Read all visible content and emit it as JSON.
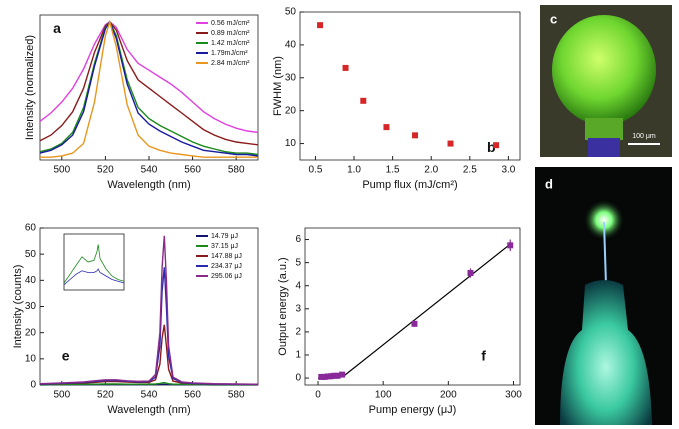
{
  "chart_data": [
    {
      "type": "line",
      "panel_label": "a",
      "xlabel": "Wavelength (nm)",
      "ylabel": "Intensity (normalized)",
      "xlim": [
        490,
        590
      ],
      "xticks": [
        500,
        520,
        540,
        560,
        580
      ],
      "ylim": [
        0,
        1.05
      ],
      "yticks": [],
      "legend": "upper right",
      "x": [
        490,
        495,
        500,
        505,
        510,
        515,
        520,
        522,
        525,
        530,
        535,
        540,
        545,
        550,
        555,
        560,
        565,
        570,
        575,
        580,
        585,
        590
      ],
      "series": [
        {
          "name": "0.56 mJ/cm²",
          "color": "#e040e0",
          "values": [
            0.28,
            0.34,
            0.42,
            0.52,
            0.66,
            0.84,
            0.98,
            1.0,
            0.96,
            0.8,
            0.7,
            0.65,
            0.6,
            0.55,
            0.49,
            0.42,
            0.35,
            0.3,
            0.26,
            0.23,
            0.21,
            0.2
          ]
        },
        {
          "name": "0.89 mJ/cm²",
          "color": "#8b1a1a",
          "values": [
            0.14,
            0.18,
            0.25,
            0.35,
            0.52,
            0.78,
            0.97,
            1.0,
            0.94,
            0.72,
            0.58,
            0.52,
            0.46,
            0.4,
            0.34,
            0.28,
            0.22,
            0.18,
            0.15,
            0.13,
            0.12,
            0.11
          ]
        },
        {
          "name": "1.42 mJ/cm²",
          "color": "#1a8a1a",
          "values": [
            0.06,
            0.08,
            0.12,
            0.2,
            0.38,
            0.7,
            0.96,
            1.0,
            0.9,
            0.58,
            0.38,
            0.3,
            0.25,
            0.21,
            0.17,
            0.13,
            0.1,
            0.08,
            0.06,
            0.05,
            0.05,
            0.04
          ]
        },
        {
          "name": "1.79mJ/cm²",
          "color": "#1a1aa0",
          "values": [
            0.05,
            0.07,
            0.11,
            0.18,
            0.35,
            0.68,
            0.95,
            1.0,
            0.88,
            0.55,
            0.34,
            0.26,
            0.21,
            0.17,
            0.13,
            0.1,
            0.07,
            0.06,
            0.05,
            0.04,
            0.04,
            0.03
          ]
        },
        {
          "name": "2.84 mJ/cm²",
          "color": "#e8961e",
          "values": [
            0.02,
            0.02,
            0.03,
            0.05,
            0.12,
            0.42,
            0.9,
            1.0,
            0.82,
            0.4,
            0.18,
            0.1,
            0.07,
            0.05,
            0.04,
            0.03,
            0.02,
            0.02,
            0.02,
            0.02,
            0.02,
            0.02
          ]
        }
      ]
    },
    {
      "type": "scatter",
      "panel_label": "b",
      "xlabel": "Pump flux (mJ/cm²)",
      "ylabel": "FWHM (nm)",
      "xlim": [
        0.3,
        3.15
      ],
      "xticks": [
        0.5,
        {
          "value": 1,
          "label": "1.0"
        },
        1.5,
        {
          "value": 2,
          "label": "2.0"
        },
        2.5,
        {
          "value": 3,
          "label": "3.0"
        }
      ],
      "ylim": [
        5,
        50
      ],
      "yticks": [
        10,
        20,
        30,
        40,
        50
      ],
      "series": [
        {
          "color": "#d62728",
          "x": [
            0.56,
            0.89,
            1.12,
            1.42,
            1.79,
            2.25,
            2.84
          ],
          "values": [
            46,
            33,
            23,
            15,
            12.5,
            10,
            9.5
          ]
        }
      ]
    },
    {
      "type": "line",
      "panel_label": "e",
      "xlabel": "Wavelength (nm)",
      "ylabel": "Intensity (counts)",
      "xlim": [
        490,
        590
      ],
      "xticks": [
        500,
        520,
        540,
        560,
        580
      ],
      "ylim": [
        0,
        60
      ],
      "yticks": [
        0,
        10,
        20,
        30,
        40,
        50,
        60
      ],
      "legend": "upper right",
      "x": [
        490,
        500,
        510,
        515,
        520,
        525,
        530,
        535,
        540,
        543,
        545,
        546,
        547,
        548,
        549,
        551,
        555,
        560,
        570,
        580,
        590
      ],
      "series": [
        {
          "name": "14.79 μJ",
          "color": "#14146e",
          "values": [
            0.05,
            0.1,
            0.15,
            0.2,
            0.2,
            0.2,
            0.2,
            0.15,
            0.15,
            0.2,
            0.2,
            0.25,
            0.25,
            0.2,
            0.2,
            0.15,
            0.1,
            0.1,
            0.05,
            0.05,
            0.05
          ]
        },
        {
          "name": "37.15 μJ",
          "color": "#1a8a1a",
          "values": [
            0.1,
            0.2,
            0.3,
            0.3,
            0.4,
            0.4,
            0.3,
            0.3,
            0.3,
            0.4,
            0.6,
            0.8,
            0.9,
            0.7,
            0.5,
            0.3,
            0.3,
            0.2,
            0.1,
            0.1,
            0.1
          ]
        },
        {
          "name": "147.88 μJ",
          "color": "#8b1a1a",
          "values": [
            0.3,
            0.5,
            0.8,
            1.0,
            1.3,
            1.3,
            1.1,
            1.0,
            1.0,
            2,
            8,
            18,
            23,
            15,
            6,
            1.5,
            0.8,
            0.5,
            0.3,
            0.3,
            0.2
          ]
        },
        {
          "name": "234.37 μJ",
          "color": "#2a2ab0",
          "values": [
            0.4,
            0.6,
            1.0,
            1.3,
            1.7,
            1.7,
            1.4,
            1.2,
            1.3,
            3,
            15,
            36,
            45,
            30,
            11,
            2.5,
            1,
            0.6,
            0.4,
            0.3,
            0.3
          ]
        },
        {
          "name": "295.06 μJ",
          "color": "#8a2a8a",
          "values": [
            0.5,
            0.8,
            1.2,
            1.6,
            2.0,
            2.0,
            1.6,
            1.4,
            1.5,
            4,
            20,
            45,
            57,
            40,
            15,
            3,
            1.2,
            0.8,
            0.5,
            0.4,
            0.3
          ]
        }
      ]
    },
    {
      "type": "line",
      "inset": true,
      "xlim": [
        490,
        590
      ],
      "ylim": [
        0,
        1.6
      ],
      "x": [
        490,
        500,
        510,
        520,
        530,
        540,
        545,
        547,
        550,
        560,
        570,
        580,
        590
      ],
      "series": [
        {
          "color": "#1a8a1a",
          "values": [
            0.2,
            0.45,
            0.7,
            0.95,
            0.8,
            0.85,
            1.1,
            1.3,
            0.9,
            0.6,
            0.4,
            0.3,
            0.25
          ]
        },
        {
          "color": "#2a2ab0",
          "values": [
            0.15,
            0.3,
            0.45,
            0.55,
            0.5,
            0.5,
            0.55,
            0.6,
            0.5,
            0.4,
            0.3,
            0.25,
            0.2
          ]
        }
      ]
    },
    {
      "type": "scatter",
      "panel_label": "f",
      "xlabel": "Pump energy  (μJ)",
      "ylabel": "Output energy (a.u.)",
      "xlim": [
        -20,
        310
      ],
      "xticks": [
        0,
        100,
        200,
        300
      ],
      "ylim": [
        -0.3,
        6.5
      ],
      "yticks": [
        0,
        1,
        2,
        3,
        4,
        5,
        6
      ],
      "series": [
        {
          "color": "#8a2a9a",
          "x": [
            5,
            10,
            15,
            20,
            25,
            30,
            37,
            148,
            234,
            295
          ],
          "values": [
            0.05,
            0.05,
            0.07,
            0.08,
            0.1,
            0.1,
            0.15,
            2.35,
            4.55,
            5.75
          ],
          "errors": [
            0.05,
            0.05,
            0.05,
            0.05,
            0.05,
            0.05,
            0.05,
            0.12,
            0.2,
            0.25
          ]
        }
      ],
      "fit": {
        "color": "#000000",
        "x": [
          0,
          40,
          295
        ],
        "values": [
          0,
          0.1,
          5.8
        ]
      }
    }
  ],
  "photos": [
    {
      "label": "c",
      "scale_label": "100 μm"
    },
    {
      "label": "d"
    }
  ]
}
